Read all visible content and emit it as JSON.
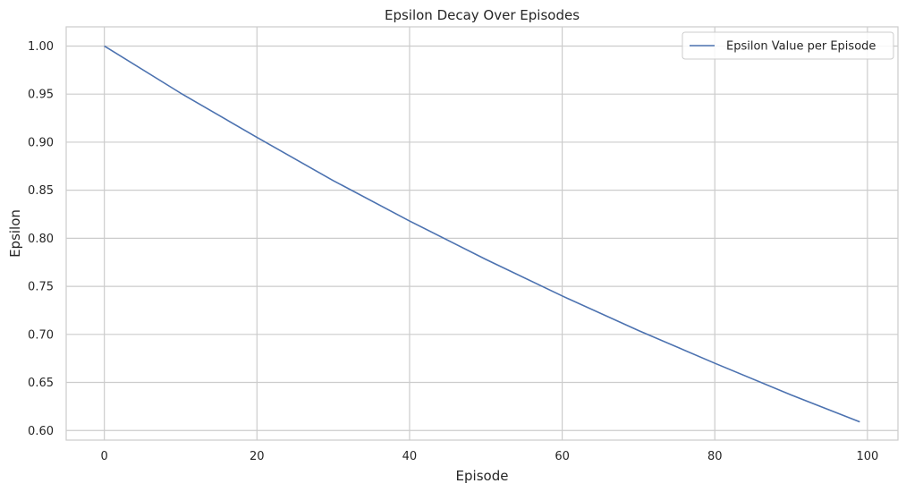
{
  "chart_data": {
    "type": "line",
    "title": "Epsilon Decay Over Episodes",
    "xlabel": "Episode",
    "ylabel": "Epsilon",
    "xlim": [
      -5,
      104
    ],
    "ylim": [
      0.59,
      1.02
    ],
    "x_ticks": [
      0,
      20,
      40,
      60,
      80,
      100
    ],
    "y_ticks": [
      0.6,
      0.65,
      0.7,
      0.75,
      0.8,
      0.85,
      0.9,
      0.95,
      1.0
    ],
    "x_tick_labels": [
      "0",
      "20",
      "40",
      "60",
      "80",
      "100"
    ],
    "y_tick_labels": [
      "0.60",
      "0.65",
      "0.70",
      "0.75",
      "0.80",
      "0.85",
      "0.90",
      "0.95",
      "1.00"
    ],
    "grid": true,
    "legend_position": "top-right",
    "series": [
      {
        "name": "Epsilon Value per Episode",
        "color": "#4c72b0",
        "x": [
          0,
          10,
          20,
          30,
          40,
          50,
          60,
          70,
          80,
          90,
          99
        ],
        "y": [
          1.0,
          0.951,
          0.905,
          0.86,
          0.818,
          0.778,
          0.74,
          0.704,
          0.67,
          0.637,
          0.609
        ]
      }
    ]
  }
}
